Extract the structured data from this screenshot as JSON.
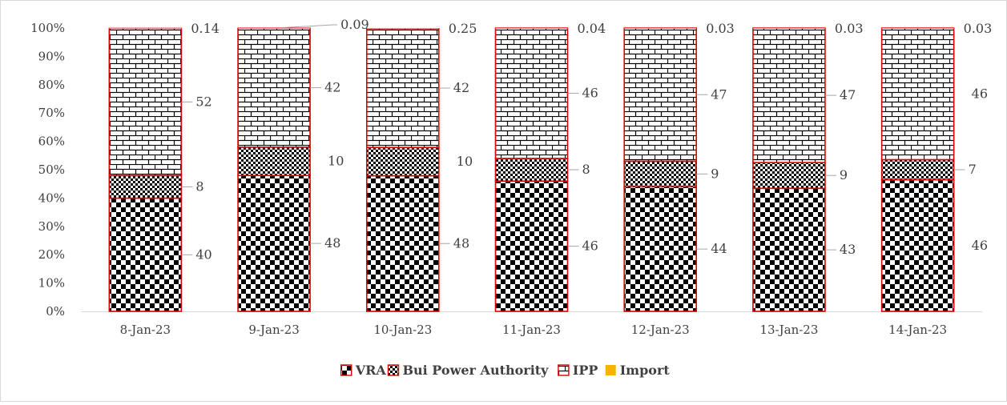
{
  "chart_data": {
    "type": "bar",
    "stacked": "percent",
    "categories": [
      "8-Jan-23",
      "9-Jan-23",
      "10-Jan-23",
      "11-Jan-23",
      "12-Jan-23",
      "13-Jan-23",
      "14-Jan-23"
    ],
    "series": [
      {
        "name": "VRA",
        "values": [
          40,
          48,
          48,
          46,
          44,
          43,
          46
        ],
        "labels": [
          "40",
          "48",
          "48",
          "46",
          "44",
          "43",
          "46"
        ],
        "pattern": "checker"
      },
      {
        "name": "Bui Power Authority",
        "values": [
          8,
          10,
          10,
          8,
          9,
          9,
          7
        ],
        "labels": [
          "8",
          "10",
          "10",
          "8",
          "9",
          "9",
          "7"
        ],
        "pattern": "fine-checker"
      },
      {
        "name": "IPP",
        "values": [
          52,
          42,
          42,
          46,
          47,
          47,
          46
        ],
        "labels": [
          "52",
          "42",
          "42",
          "46",
          "47",
          "47",
          "46"
        ],
        "pattern": "brick"
      },
      {
        "name": "Import",
        "values": [
          0.14,
          0.09,
          0.25,
          0.04,
          0.03,
          0.03,
          0.03
        ],
        "labels": [
          "0.14",
          "0.09",
          "0.25",
          "0.04",
          "0.03",
          "0.03",
          "0.03"
        ],
        "color": "#f4b400"
      }
    ],
    "yticks": [
      "0%",
      "10%",
      "20%",
      "30%",
      "40%",
      "50%",
      "60%",
      "70%",
      "80%",
      "90%",
      "100%"
    ],
    "ylim": [
      0,
      100
    ],
    "grid": false,
    "legend": "bottom",
    "bar_outline_color": "#e00000",
    "title": "",
    "xlabel": "",
    "ylabel": ""
  }
}
